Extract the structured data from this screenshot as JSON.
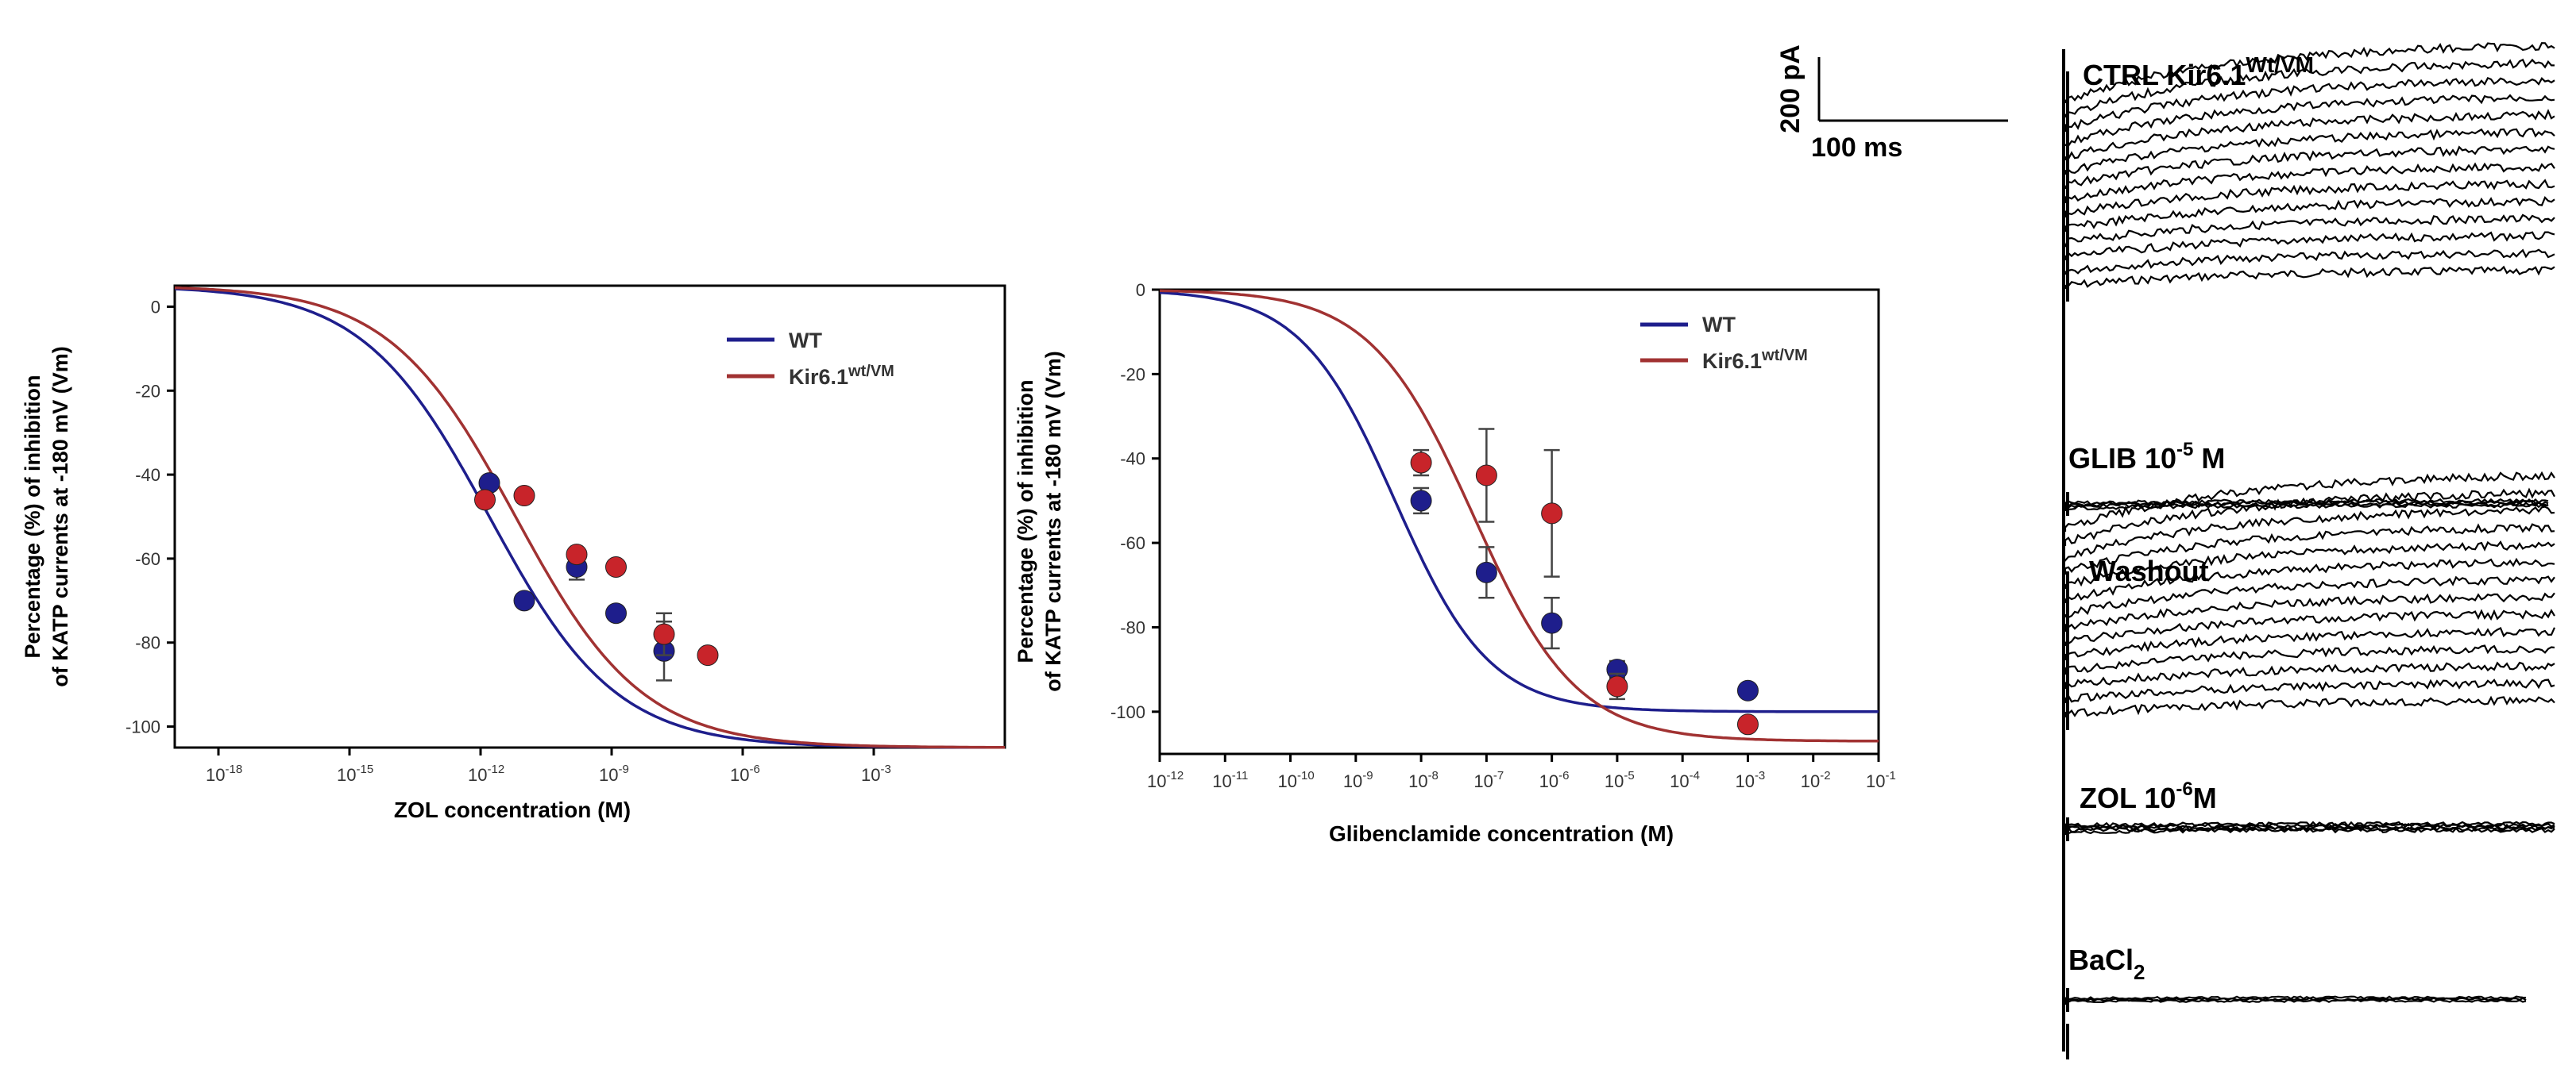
{
  "chart_data": [
    {
      "type": "scatter",
      "panel": "left",
      "xlabel": "ZOL concentration (M)",
      "ylabel_line1": "Percentage (%) of inhibition",
      "ylabel_line2": "of KATP currents at -180 mV (Vm)",
      "x_scale": "log",
      "xlim_exp": [
        -19,
        0
      ],
      "ylim": [
        -105,
        5
      ],
      "x_ticks": [
        {
          "base": "10",
          "exp": "-18"
        },
        {
          "base": "10",
          "exp": "-15"
        },
        {
          "base": "10",
          "exp": "-12"
        },
        {
          "base": "10",
          "exp": "-9"
        },
        {
          "base": "10",
          "exp": "-6"
        },
        {
          "base": "10",
          "exp": "-3"
        }
      ],
      "y_ticks": [
        "0",
        "-20",
        "-40",
        "-60",
        "-80",
        "-100"
      ],
      "legend": {
        "placement": "top-right",
        "wt": "WT",
        "mut_base": "Kir6.1",
        "mut_sup": "wt/VM"
      },
      "series": [
        {
          "name": "WT",
          "color": "#1e1e8c",
          "points": [
            [
              -11.8,
              -42
            ],
            [
              -11,
              -70
            ],
            [
              -9.8,
              -62
            ],
            [
              -8.9,
              -73
            ],
            [
              -7.8,
              -82
            ]
          ],
          "err": [
            0,
            0,
            3,
            0,
            7
          ]
        },
        {
          "name": "Kir6.1wt/VM",
          "color": "#c8242a",
          "points": [
            [
              -11.9,
              -46
            ],
            [
              -11,
              -45
            ],
            [
              -9.8,
              -59
            ],
            [
              -8.9,
              -62
            ],
            [
              -7.8,
              -78
            ],
            [
              -6.8,
              -83
            ]
          ],
          "err": [
            0,
            0,
            0,
            0,
            5,
            0
          ]
        }
      ],
      "fits": [
        {
          "name": "WT",
          "color": "#1e1e8c",
          "top": 5,
          "bottom": -105,
          "logec50": -11.8,
          "hill": 0.3
        },
        {
          "name": "Kir6.1wt/VM",
          "color": "#a13232",
          "top": 5,
          "bottom": -105,
          "logec50": -11.2,
          "hill": 0.3
        }
      ]
    },
    {
      "type": "scatter",
      "panel": "middle",
      "xlabel": "Glibenclamide concentration (M)",
      "ylabel_line1": "Percentage (%) of inhibition",
      "ylabel_line2": "of KATP currents at -180 mV (Vm)",
      "x_scale": "log",
      "xlim_exp": [
        -12,
        -1
      ],
      "ylim": [
        -110,
        0
      ],
      "x_ticks": [
        {
          "base": "10",
          "exp": "-12"
        },
        {
          "base": "10",
          "exp": "-11"
        },
        {
          "base": "10",
          "exp": "-10"
        },
        {
          "base": "10",
          "exp": "-9"
        },
        {
          "base": "10",
          "exp": "-8"
        },
        {
          "base": "10",
          "exp": "-7"
        },
        {
          "base": "10",
          "exp": "-6"
        },
        {
          "base": "10",
          "exp": "-5"
        },
        {
          "base": "10",
          "exp": "-4"
        },
        {
          "base": "10",
          "exp": "-3"
        },
        {
          "base": "10",
          "exp": "-2"
        },
        {
          "base": "10",
          "exp": "-1"
        }
      ],
      "y_ticks": [
        "0",
        "-20",
        "-40",
        "-60",
        "-80",
        "-100"
      ],
      "legend": {
        "placement": "top-right",
        "wt": "WT",
        "mut_base": "Kir6.1",
        "mut_sup": "wt/VM"
      },
      "series": [
        {
          "name": "WT",
          "color": "#1e1e8c",
          "points": [
            [
              -8,
              -50
            ],
            [
              -7,
              -67
            ],
            [
              -6,
              -79
            ],
            [
              -5,
              -90
            ],
            [
              -3,
              -95
            ]
          ],
          "err": [
            3,
            6,
            6,
            2,
            0
          ]
        },
        {
          "name": "Kir6.1wt/VM",
          "color": "#c8242a",
          "points": [
            [
              -8,
              -41
            ],
            [
              -7,
              -44
            ],
            [
              -6,
              -53
            ],
            [
              -5,
              -94
            ],
            [
              -3,
              -103
            ]
          ],
          "err": [
            3,
            11,
            15,
            3,
            0
          ]
        }
      ],
      "fits": [
        {
          "name": "WT",
          "color": "#1e1e8c",
          "top": 0,
          "bottom": -100,
          "logec50": -8.4,
          "hill": 0.6
        },
        {
          "name": "Kir6.1wt/VM",
          "color": "#a13232",
          "top": 0,
          "bottom": -107,
          "logec50": -7.2,
          "hill": 0.55
        }
      ]
    }
  ],
  "traces": {
    "scale_bar": {
      "current": "200 pA",
      "time": "100 ms"
    },
    "labels": [
      {
        "base": "CTRL Kir6.1",
        "sup": "Wt/VM",
        "sub": ""
      },
      {
        "base": "GLIB 10",
        "sup": "-5",
        "tail": " M",
        "sub": ""
      },
      {
        "base": "Washout",
        "sup": "",
        "sub": ""
      },
      {
        "base": "ZOL 10",
        "sup": "-6",
        "tail": "M",
        "sub": ""
      },
      {
        "base": "BaCl",
        "sup": "",
        "sub": "2"
      }
    ]
  }
}
